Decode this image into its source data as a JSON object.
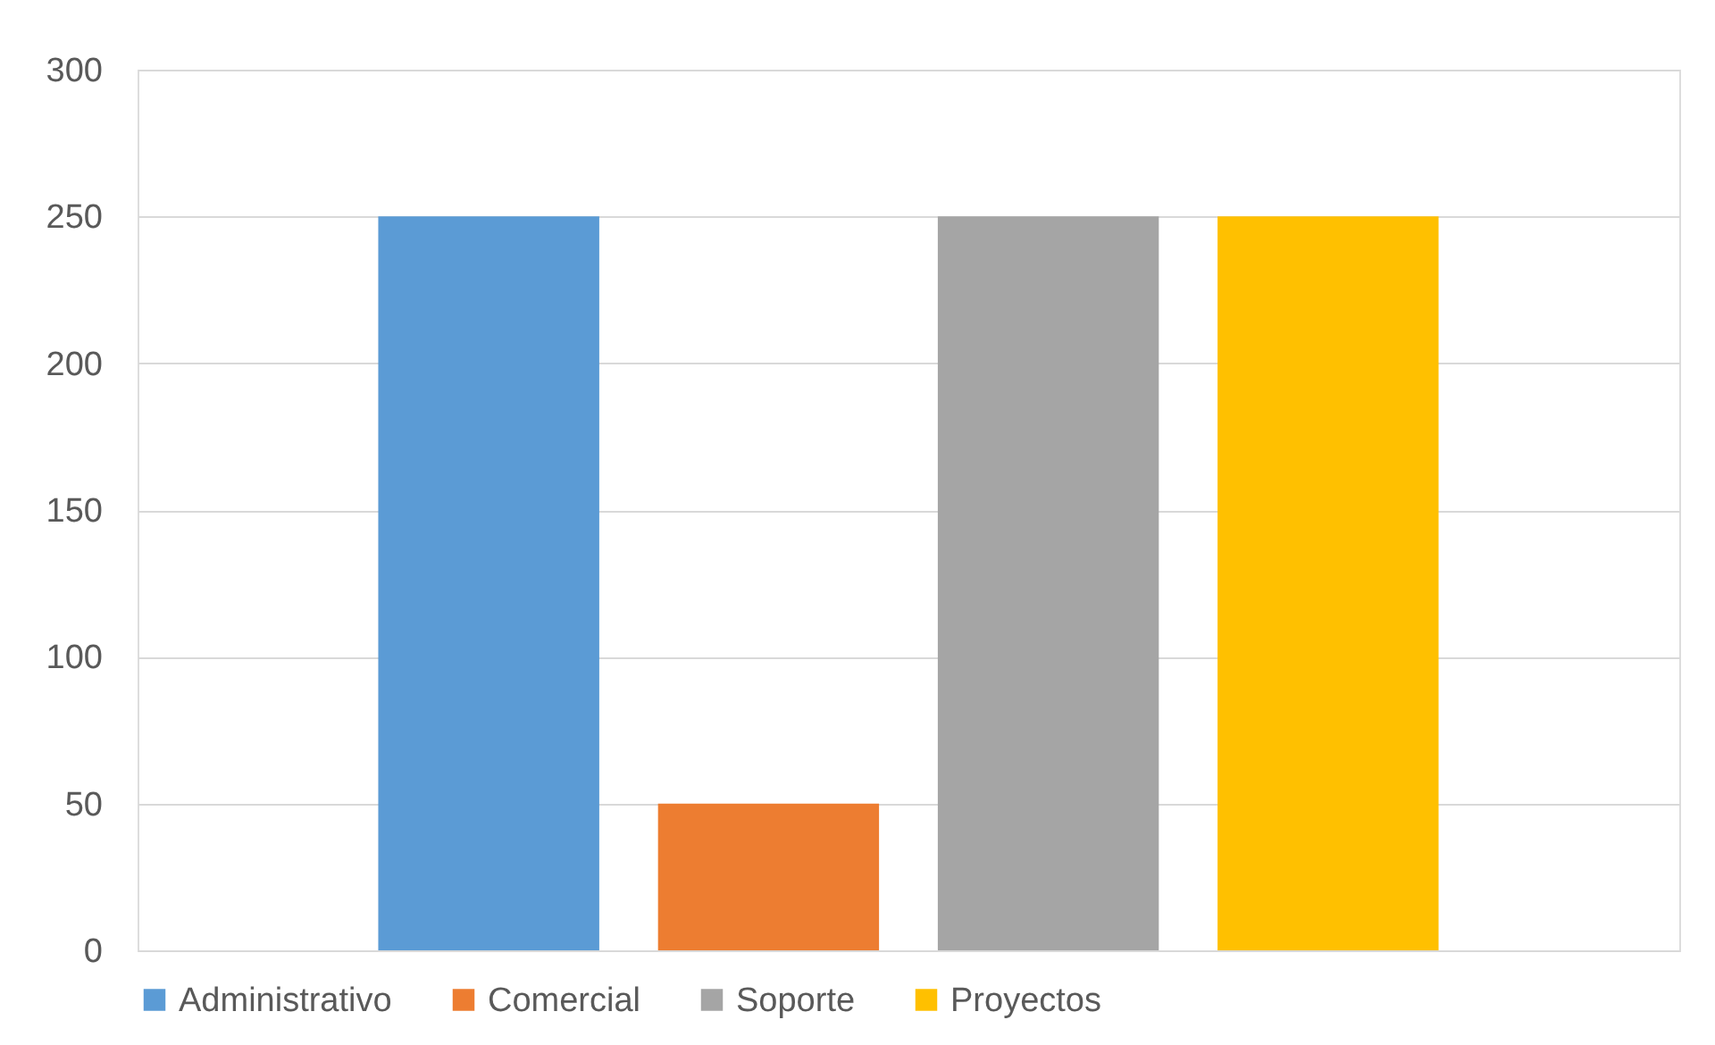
{
  "chart_data": {
    "type": "bar",
    "categories": [
      null
    ],
    "series": [
      {
        "name": "Administrativo",
        "color": "#5b9bd5",
        "values": [
          250
        ]
      },
      {
        "name": "Comercial",
        "color": "#ed7d31",
        "values": [
          50
        ]
      },
      {
        "name": "Soporte",
        "color": "#a5a5a5",
        "values": [
          250
        ]
      },
      {
        "name": "Proyectos",
        "color": "#ffc000",
        "values": [
          250
        ]
      }
    ],
    "ylim": [
      0,
      300
    ],
    "yticks": [
      0,
      50,
      100,
      150,
      200,
      250,
      300
    ],
    "grid": "y",
    "legend": "bottom",
    "tick_labels": "y"
  }
}
